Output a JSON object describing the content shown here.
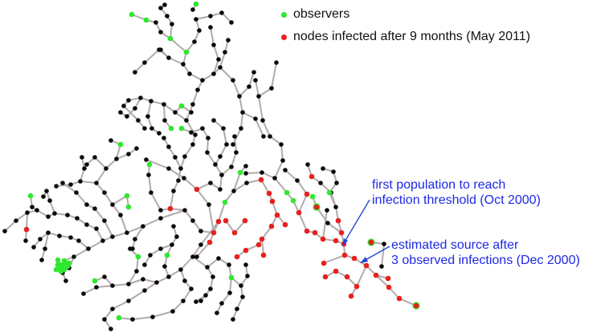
{
  "legend": {
    "observers": {
      "label": "observers",
      "color": "#2ee82e"
    },
    "infected": {
      "label": "nodes infected after 9 months (May 2011)",
      "color": "#e8201e"
    }
  },
  "annotations": {
    "first_population": {
      "line1": "first population to reach",
      "line2": "infection threshold (Oct 2000)"
    },
    "estimated_source": {
      "line1": "estimated source after",
      "line2": "3 observed infections (Dec 2000)"
    }
  },
  "colors": {
    "edge": "#b3a9ad",
    "node_default": "#0a0a0a",
    "annotation": "#1d28e6",
    "arrow": "#2347d8",
    "infected_observer_ring": "#2ee82e"
  }
}
